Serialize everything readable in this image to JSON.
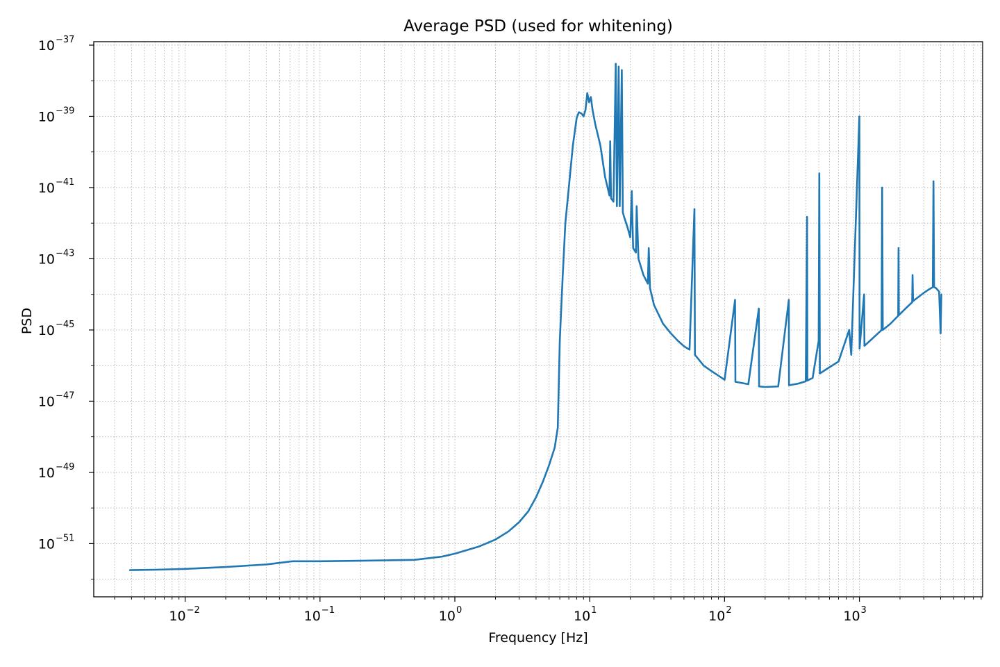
{
  "chart_data": {
    "type": "line",
    "title": "Average PSD (used for whitening)",
    "xlabel": "Frequency [Hz]",
    "ylabel": "PSD",
    "xscale": "log",
    "yscale": "log",
    "xlim": [
      0.0021,
      8200
    ],
    "ylim": [
      3.2e-53,
      1.25e-37
    ],
    "grid": true,
    "grid_style": "dotted",
    "x_ticks": [
      {
        "value": 0.01,
        "base": "10",
        "exp": "−2"
      },
      {
        "value": 0.1,
        "base": "10",
        "exp": "−1"
      },
      {
        "value": 1,
        "base": "10",
        "exp": "0"
      },
      {
        "value": 10,
        "base": "10",
        "exp": "1"
      },
      {
        "value": 100,
        "base": "10",
        "exp": "2"
      },
      {
        "value": 1000,
        "base": "10",
        "exp": "3"
      }
    ],
    "y_ticks": [
      {
        "value": 1e-37,
        "base": "10",
        "exp": "−37"
      },
      {
        "value": 1e-39,
        "base": "10",
        "exp": "−39"
      },
      {
        "value": 1e-41,
        "base": "10",
        "exp": "−41"
      },
      {
        "value": 1e-43,
        "base": "10",
        "exp": "−43"
      },
      {
        "value": 1e-45,
        "base": "10",
        "exp": "−45"
      },
      {
        "value": 1e-47,
        "base": "10",
        "exp": "−47"
      },
      {
        "value": 1e-49,
        "base": "10",
        "exp": "−49"
      },
      {
        "value": 1e-51,
        "base": "10",
        "exp": "−51"
      }
    ],
    "series": [
      {
        "name": "Average PSD",
        "color": "#1f77b4",
        "points": [
          [
            0.0039,
            1.8e-52
          ],
          [
            0.006,
            1.85e-52
          ],
          [
            0.01,
            1.95e-52
          ],
          [
            0.02,
            2.2e-52
          ],
          [
            0.04,
            2.6e-52
          ],
          [
            0.0625,
            3.2e-52
          ],
          [
            0.1,
            3.2e-52
          ],
          [
            0.2,
            3.3e-52
          ],
          [
            0.5,
            3.5e-52
          ],
          [
            0.8,
            4.3e-52
          ],
          [
            1.0,
            5.2e-52
          ],
          [
            1.5,
            8.2e-52
          ],
          [
            2.0,
            1.3e-51
          ],
          [
            2.5,
            2.2e-51
          ],
          [
            3.0,
            4e-51
          ],
          [
            3.5,
            8e-51
          ],
          [
            4.0,
            2e-50
          ],
          [
            4.5,
            5.5e-50
          ],
          [
            5.0,
            1.6e-49
          ],
          [
            5.5,
            5e-49
          ],
          [
            5.8,
            1.8e-48
          ],
          [
            6.0,
            5e-46
          ],
          [
            6.3,
            3e-44
          ],
          [
            6.6,
            1e-42
          ],
          [
            7.0,
            1e-41
          ],
          [
            7.5,
            1.5e-40
          ],
          [
            8.0,
            9e-40
          ],
          [
            8.3,
            1.3e-39
          ],
          [
            8.7,
            1.2e-39
          ],
          [
            9.0,
            1e-39
          ],
          [
            9.3,
            1.5e-39
          ],
          [
            9.6,
            4.5e-39
          ],
          [
            9.9,
            2.5e-39
          ],
          [
            10.2,
            3.5e-39
          ],
          [
            10.5,
            1.5e-39
          ],
          [
            11.0,
            6e-40
          ],
          [
            12.0,
            1.5e-40
          ],
          [
            13.0,
            2e-41
          ],
          [
            14.0,
            6e-42
          ],
          [
            14.2,
            2e-40
          ],
          [
            14.4,
            5e-42
          ],
          [
            15.0,
            4e-42
          ],
          [
            15.6,
            3e-38
          ],
          [
            15.9,
            3e-42
          ],
          [
            16.4,
            2.5e-38
          ],
          [
            16.7,
            3e-42
          ],
          [
            17.3,
            2e-38
          ],
          [
            17.6,
            2e-42
          ],
          [
            18.0,
            1.5e-42
          ],
          [
            19.0,
            8e-43
          ],
          [
            20.0,
            4e-43
          ],
          [
            20.5,
            8e-42
          ],
          [
            21.0,
            2e-43
          ],
          [
            22.0,
            1.5e-43
          ],
          [
            22.3,
            3e-42
          ],
          [
            23.0,
            1e-43
          ],
          [
            25.0,
            3.5e-44
          ],
          [
            27.0,
            2e-44
          ],
          [
            27.4,
            2e-43
          ],
          [
            28.0,
            1.5e-44
          ],
          [
            30.0,
            5e-45
          ],
          [
            35.0,
            1.5e-45
          ],
          [
            40.0,
            8e-46
          ],
          [
            45.0,
            5e-46
          ],
          [
            50.0,
            3.5e-46
          ],
          [
            55.0,
            2.8e-46
          ],
          [
            59.8,
            2.5e-42
          ],
          [
            60.3,
            2e-46
          ],
          [
            70.0,
            1e-46
          ],
          [
            80.0,
            7e-47
          ],
          [
            100.0,
            4e-47
          ],
          [
            119.6,
            7e-45
          ],
          [
            120.4,
            3.5e-47
          ],
          [
            150.0,
            3e-47
          ],
          [
            179.6,
            4e-45
          ],
          [
            180.4,
            2.6e-47
          ],
          [
            200.0,
            2.5e-47
          ],
          [
            250.0,
            2.6e-47
          ],
          [
            299.6,
            7e-45
          ],
          [
            300.6,
            2.8e-47
          ],
          [
            350.0,
            3.1e-47
          ],
          [
            400.0,
            3.6e-47
          ],
          [
            409.0,
            1.5e-42
          ],
          [
            411.0,
            3.8e-47
          ],
          [
            450.0,
            4.5e-47
          ],
          [
            499.0,
            5e-46
          ],
          [
            504.0,
            2.5e-41
          ],
          [
            509.0,
            6e-47
          ],
          [
            600.0,
            9e-47
          ],
          [
            700.0,
            1.3e-46
          ],
          [
            840.0,
            1e-45
          ],
          [
            870.0,
            2e-46
          ],
          [
            1000.0,
            1e-39
          ],
          [
            1003.0,
            3e-46
          ],
          [
            1083.0,
            1e-44
          ],
          [
            1090.0,
            3.6e-46
          ],
          [
            1200.0,
            5e-46
          ],
          [
            1460.0,
            1e-45
          ],
          [
            1475.0,
            1e-41
          ],
          [
            1490.0,
            1e-45
          ],
          [
            1700.0,
            1.5e-45
          ],
          [
            1940.0,
            2.5e-45
          ],
          [
            1950.0,
            2e-43
          ],
          [
            1960.0,
            2.6e-45
          ],
          [
            2200.0,
            4e-45
          ],
          [
            2460.0,
            6e-45
          ],
          [
            2480.0,
            3.5e-44
          ],
          [
            2500.0,
            6.5e-45
          ],
          [
            2800.0,
            9e-45
          ],
          [
            3000.0,
            1.1e-44
          ],
          [
            3300.0,
            1.4e-44
          ],
          [
            3500.0,
            1.6e-44
          ],
          [
            3540.0,
            1.5e-41
          ],
          [
            3580.0,
            1.6e-44
          ],
          [
            3700.0,
            1.5e-44
          ],
          [
            3900.0,
            1.2e-44
          ],
          [
            4000.0,
            8e-46
          ],
          [
            4050.0,
            1e-44
          ]
        ]
      }
    ]
  }
}
